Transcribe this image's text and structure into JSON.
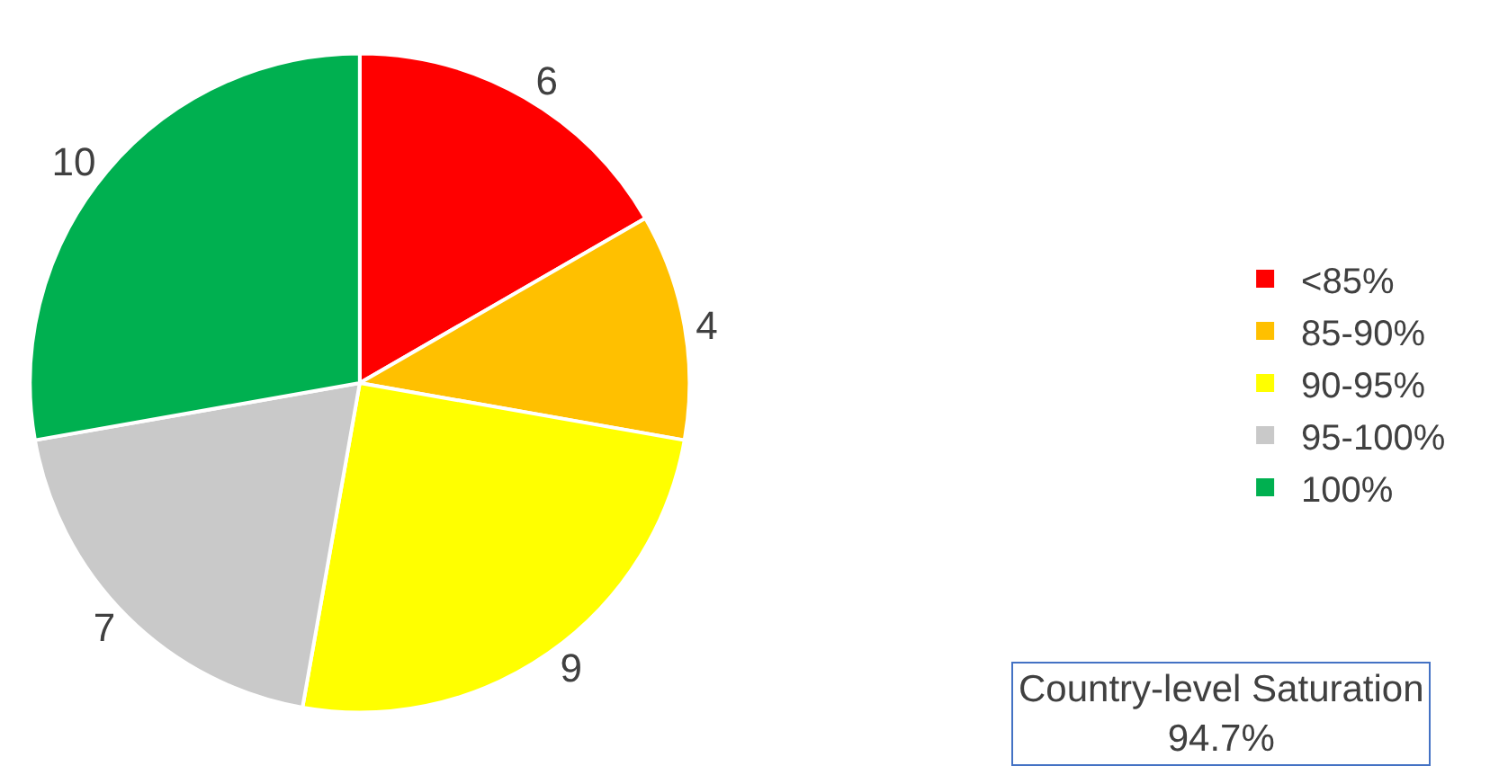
{
  "chart_data": {
    "type": "pie",
    "categories": [
      "<85%",
      "85-90%",
      "90-95%",
      "95-100%",
      "100%"
    ],
    "values": [
      6,
      4,
      9,
      7,
      10
    ],
    "colors": [
      "#ff0000",
      "#ffc000",
      "#ffff00",
      "#c9c9c9",
      "#00b050"
    ],
    "data_labels": true,
    "legend": "right",
    "annotations": [
      "Country-level Saturation\n94.7%"
    ]
  }
}
